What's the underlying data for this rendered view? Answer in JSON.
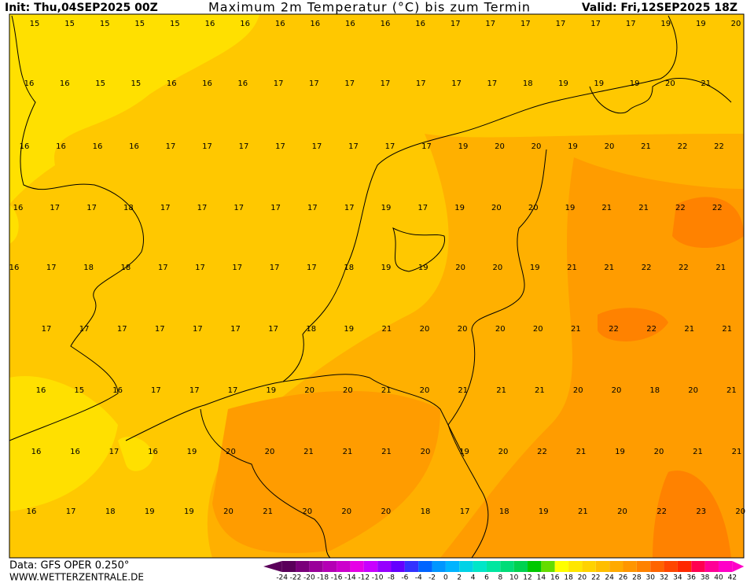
{
  "header": {
    "init": "Init: Thu,04SEP2025 00Z",
    "title": "Maximum 2m Temperatur (°C) bis zum Termin",
    "valid": "Valid: Fri,12SEP2025 18Z"
  },
  "map": {
    "rows": [
      [
        15,
        15,
        15,
        15,
        15,
        16,
        16,
        16,
        16,
        16,
        16,
        16,
        17,
        17,
        17,
        17,
        17,
        17,
        19,
        19,
        20
      ],
      [
        16,
        16,
        15,
        15,
        16,
        16,
        16,
        17,
        17,
        17,
        17,
        17,
        17,
        17,
        18,
        19,
        19,
        19,
        20,
        21
      ],
      [
        16,
        16,
        16,
        16,
        17,
        17,
        17,
        17,
        17,
        17,
        17,
        17,
        19,
        20,
        20,
        19,
        20,
        21,
        22,
        22
      ],
      [
        16,
        17,
        17,
        18,
        17,
        17,
        17,
        17,
        17,
        17,
        19,
        17,
        19,
        20,
        20,
        19,
        21,
        21,
        22,
        22
      ],
      [
        16,
        17,
        18,
        18,
        17,
        17,
        17,
        17,
        17,
        18,
        19,
        19,
        20,
        20,
        19,
        21,
        21,
        22,
        22,
        21
      ],
      [
        17,
        17,
        17,
        17,
        17,
        17,
        17,
        18,
        19,
        21,
        20,
        20,
        20,
        20,
        21,
        22,
        22,
        21,
        21
      ],
      [
        16,
        15,
        16,
        17,
        17,
        17,
        19,
        20,
        20,
        21,
        20,
        21,
        21,
        21,
        20,
        20,
        18,
        20,
        21
      ],
      [
        16,
        16,
        17,
        16,
        19,
        20,
        20,
        21,
        21,
        21,
        20,
        19,
        20,
        22,
        21,
        19,
        20,
        21,
        21
      ],
      [
        16,
        17,
        18,
        19,
        19,
        20,
        21,
        20,
        20,
        20,
        18,
        17,
        18,
        19,
        21,
        20,
        22,
        23,
        20
      ]
    ]
  },
  "colorbar": {
    "labels": [
      -24,
      -22,
      -20,
      -18,
      -16,
      -14,
      -12,
      -10,
      -8,
      -6,
      -4,
      -2,
      0,
      2,
      4,
      6,
      8,
      10,
      12,
      14,
      16,
      18,
      20,
      22,
      24,
      26,
      28,
      30,
      32,
      34,
      36,
      38,
      40,
      42
    ],
    "colors": [
      "#5a005a",
      "#7a007a",
      "#9a009a",
      "#b400b4",
      "#cc00cc",
      "#e600e6",
      "#c800ff",
      "#9600ff",
      "#6400ff",
      "#3232ff",
      "#0064ff",
      "#0096ff",
      "#00b4ff",
      "#00d2e6",
      "#00e6c8",
      "#00e6a0",
      "#00dc78",
      "#00d250",
      "#00c800",
      "#64dc00",
      "#ffff00",
      "#ffe600",
      "#ffd200",
      "#ffbe00",
      "#ffaa00",
      "#ff9600",
      "#ff8200",
      "#ff6400",
      "#ff4600",
      "#ff2800",
      "#ff0050",
      "#ff0096",
      "#ff00c8"
    ]
  },
  "footer": {
    "source": "Data: GFS OPER 0.250°",
    "site": "WWW.WETTERZENTRALE.DE"
  }
}
